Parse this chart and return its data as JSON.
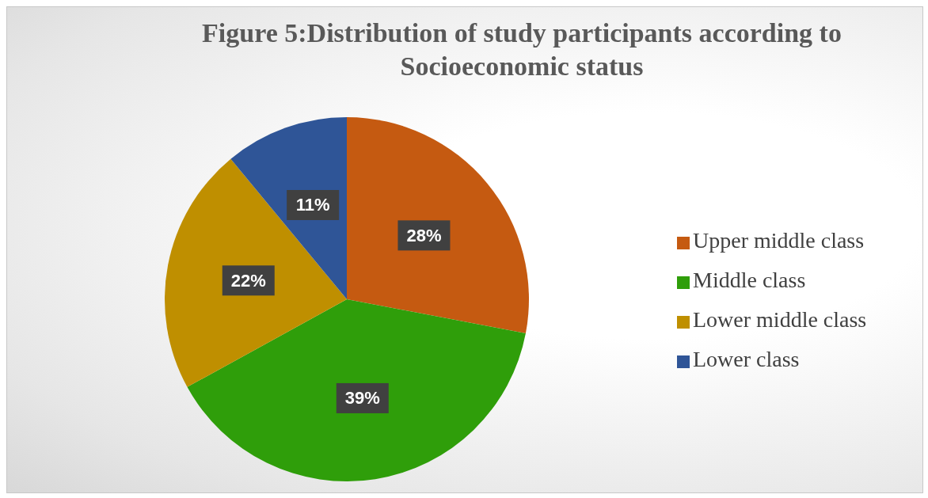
{
  "chart_data": {
    "type": "pie",
    "title": "Figure 5:Distribution of study participants according to Socioeconomic status",
    "categories": [
      "Upper middle class",
      "Middle class",
      "Lower middle class",
      "Lower class"
    ],
    "values": [
      28,
      39,
      22,
      11
    ],
    "colors": [
      "#c55a11",
      "#2f9e0a",
      "#bf8f00",
      "#2f5597"
    ],
    "value_labels": [
      "28%",
      "39%",
      "22%",
      "11%"
    ],
    "legend": "right"
  }
}
